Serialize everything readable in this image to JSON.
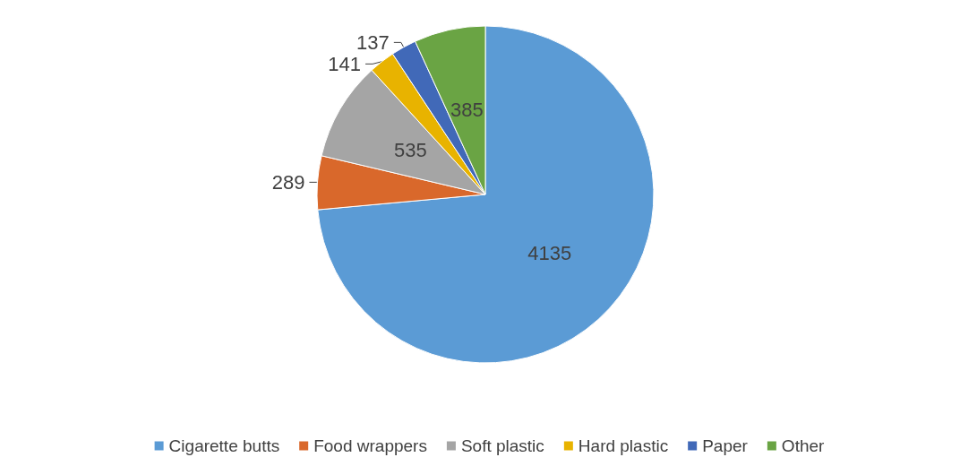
{
  "chart_data": {
    "type": "pie",
    "categories": [
      "Cigarette butts",
      "Food wrappers",
      "Soft plastic",
      "Hard plastic",
      "Paper",
      "Other"
    ],
    "values": [
      4135,
      289,
      535,
      141,
      137,
      385
    ],
    "colors": [
      "#5b9bd5",
      "#d9682b",
      "#a5a5a5",
      "#e8b300",
      "#4169b8",
      "#6aa444"
    ],
    "data_labels": true,
    "legend": "bottom"
  }
}
